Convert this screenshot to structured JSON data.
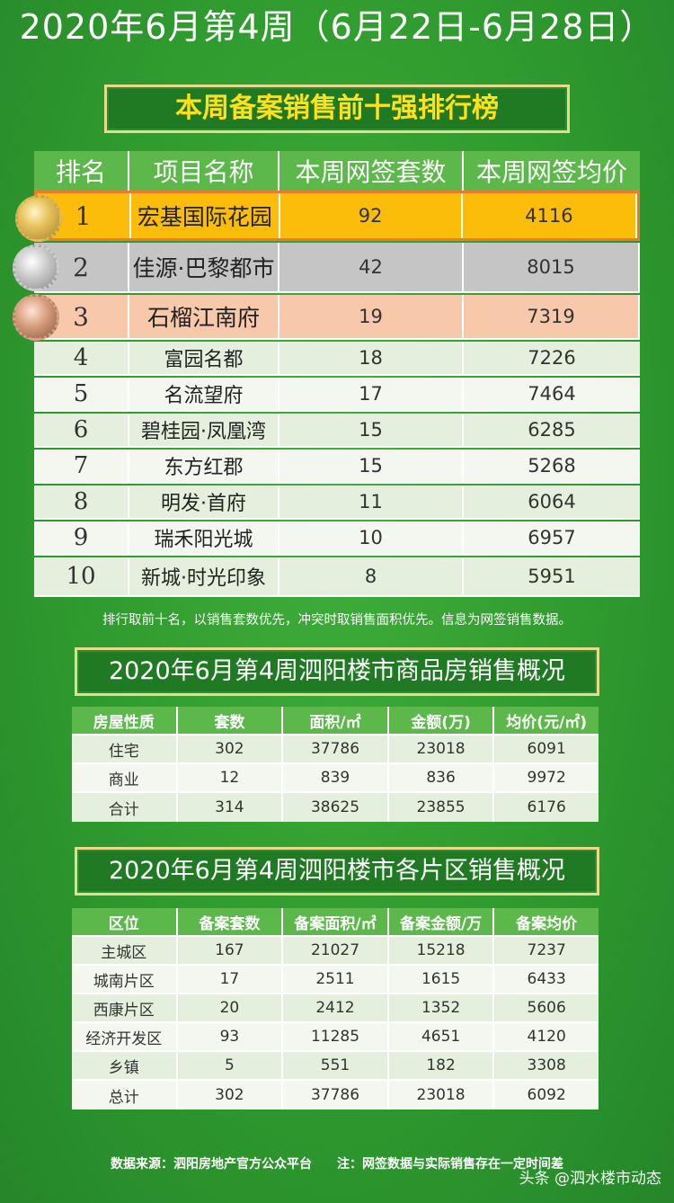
{
  "title": "2020年6月第4周（6月22日-6月28日）",
  "ranking": {
    "banner": "本周备案销售前十强排行榜",
    "headers": [
      "排名",
      "项目名称",
      "本周网签套数",
      "本周网签均价"
    ],
    "rows": [
      {
        "rank": "1",
        "name": "宏基国际花园",
        "units": "92",
        "price": "4116"
      },
      {
        "rank": "2",
        "name": "佳源·巴黎都市",
        "units": "42",
        "price": "8015"
      },
      {
        "rank": "3",
        "name": "石榴江南府",
        "units": "19",
        "price": "7319"
      },
      {
        "rank": "4",
        "name": "富园名都",
        "units": "18",
        "price": "7226"
      },
      {
        "rank": "5",
        "name": "名流望府",
        "units": "17",
        "price": "7464"
      },
      {
        "rank": "6",
        "name": "碧桂园·凤凰湾",
        "units": "15",
        "price": "6285"
      },
      {
        "rank": "7",
        "name": "东方红郡",
        "units": "15",
        "price": "5268"
      },
      {
        "rank": "8",
        "name": "明发·首府",
        "units": "11",
        "price": "6064"
      },
      {
        "rank": "9",
        "name": "瑞禾阳光城",
        "units": "10",
        "price": "6957"
      },
      {
        "rank": "10",
        "name": "新城·时光印象",
        "units": "8",
        "price": "5951"
      }
    ],
    "note": "排行取前十名，以销售套数优先，冲突时取销售面积优先。信息为网签销售数据。",
    "colors": {
      "first": "#fbbd0a",
      "second": "#c5c5c5",
      "third": "#f7c8aa",
      "highlight_border": "#f0782a"
    }
  },
  "sales": {
    "banner": "2020年6月第4周泗阳楼市商品房销售概况",
    "headers": [
      "房屋性质",
      "套数",
      "面积/㎡",
      "金额(万)",
      "均价(元/㎡)"
    ],
    "rows": [
      [
        "住宅",
        "302",
        "37786",
        "23018",
        "6091"
      ],
      [
        "商业",
        "12",
        "839",
        "836",
        "9972"
      ],
      [
        "合计",
        "314",
        "38625",
        "23855",
        "6176"
      ]
    ]
  },
  "district": {
    "banner": "2020年6月第4周泗阳楼市各片区销售概况",
    "headers": [
      "区位",
      "备案套数",
      "备案面积/㎡",
      "备案金额/万",
      "备案均价"
    ],
    "rows": [
      [
        "主城区",
        "167",
        "21027",
        "15218",
        "7237"
      ],
      [
        "城南片区",
        "17",
        "2511",
        "1615",
        "6433"
      ],
      [
        "西康片区",
        "20",
        "2412",
        "1352",
        "5606"
      ],
      [
        "经济开发区",
        "93",
        "11285",
        "4651",
        "4120"
      ],
      [
        "乡镇",
        "5",
        "551",
        "182",
        "3308"
      ],
      [
        "总计",
        "302",
        "37786",
        "23018",
        "6092"
      ]
    ]
  },
  "footer": "数据来源：泗阳房地产官方公众平台　　注：网签数据与实际销售存在一定时间差",
  "watermark": "头条 @泗水楼市动态"
}
